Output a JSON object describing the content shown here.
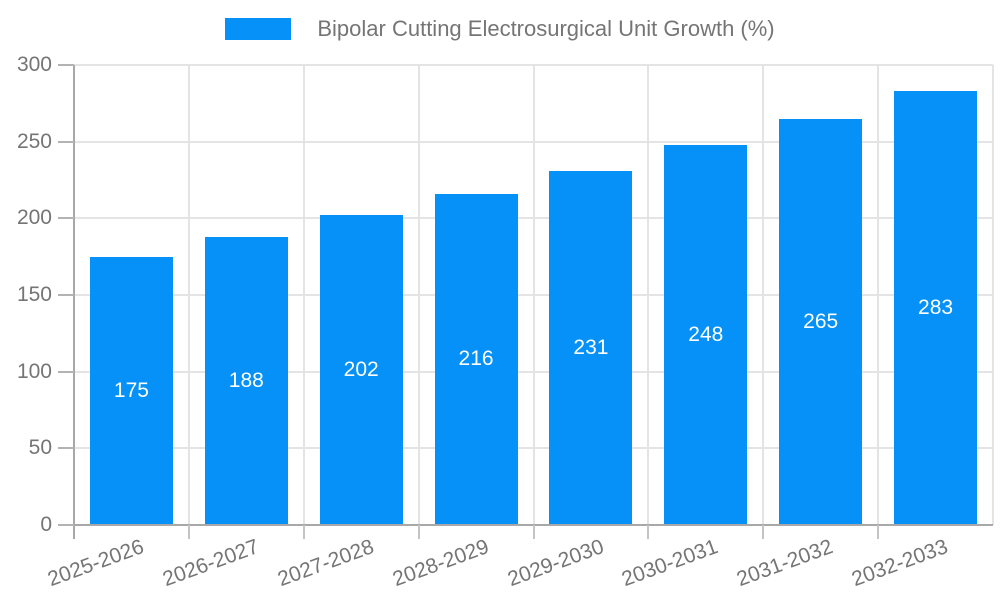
{
  "legend": {
    "label": "Bipolar Cutting Electrosurgical Unit Growth (%)",
    "swatch_color": "#0591f8"
  },
  "chart_data": {
    "type": "bar",
    "title": "",
    "categories": [
      "2025-2026",
      "2026-2027",
      "2027-2028",
      "2028-2029",
      "2029-2030",
      "2030-2031",
      "2031-2032",
      "2032-2033"
    ],
    "values": [
      175,
      188,
      202,
      216,
      231,
      248,
      265,
      283
    ],
    "series": [
      {
        "name": "Bipolar Cutting Electrosurgical Unit Growth (%)",
        "values": [
          175,
          188,
          202,
          216,
          231,
          248,
          265,
          283
        ]
      }
    ],
    "xlabel": "",
    "ylabel": "",
    "ylim": [
      0,
      300
    ],
    "yticks": [
      0,
      50,
      100,
      150,
      200,
      250,
      300
    ],
    "grid": true,
    "legend_position": "top",
    "colors": {
      "bar": "#0591f8",
      "value_label": "#ffffff",
      "gridline": "#e4e4e4",
      "axis": "#a8a8a8",
      "tick_label": "#757575",
      "legend_text": "#757575"
    }
  }
}
